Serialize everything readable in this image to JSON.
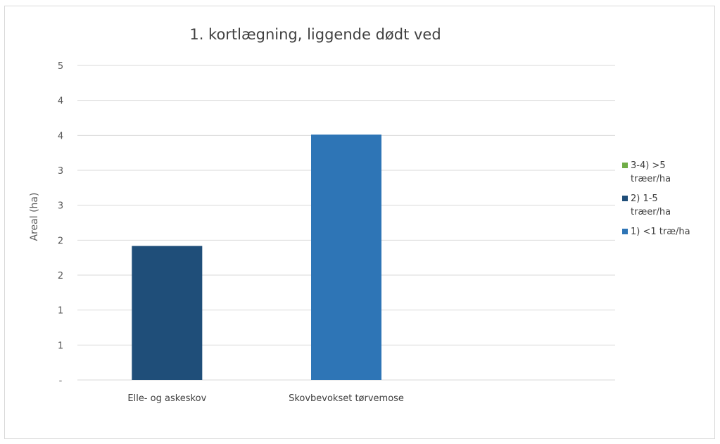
{
  "chart_data": {
    "type": "bar",
    "title": "1. kortlægning, liggende dødt ved",
    "xlabel": "",
    "ylabel": "Areal (ha)",
    "categories": [
      "Elle- og askeskov",
      "Skovbevokset tørvemose"
    ],
    "ylim": [
      0,
      5
    ],
    "ytick_labels": [
      "-",
      "1",
      "1",
      "2",
      "2",
      "3",
      "3",
      "4",
      "4",
      "5"
    ],
    "grid": true,
    "stacked": true,
    "legend_position": "right",
    "series": [
      {
        "name": "3-4) >5 træer/ha",
        "color": "#70ad47",
        "values": [
          0,
          0
        ]
      },
      {
        "name": "2) 1-5 træer/ha",
        "color": "#1f4e79",
        "values": [
          2.13,
          0
        ]
      },
      {
        "name": "1) <1 træ/ha",
        "color": "#2e75b6",
        "values": [
          0,
          3.9
        ]
      }
    ]
  }
}
